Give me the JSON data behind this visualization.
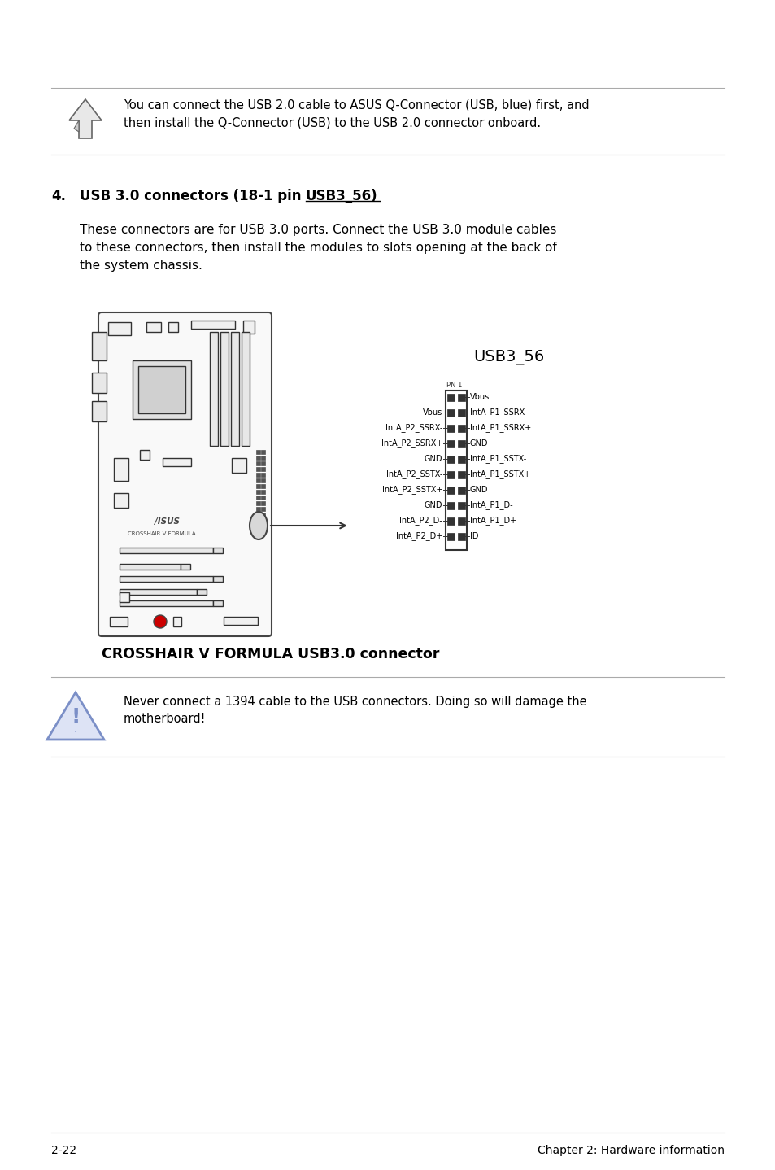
{
  "page_bg": "#ffffff",
  "top_note_text_line1": "You can connect the USB 2.0 cable to ASUS Q-Connector (USB, blue) first, and",
  "top_note_text_line2": "then install the Q-Connector (USB) to the USB 2.0 connector onboard.",
  "section_number": "4.",
  "section_title": "USB 3.0 connectors (18-1 pin USB3_56)",
  "body_line1": "These connectors are for USB 3.0 ports. Connect the USB 3.0 module cables",
  "body_line2": "to these connectors, then install the modules to slots opening at the back of",
  "body_line3": "the system chassis.",
  "diagram_title": "USB3_56",
  "caption": "CROSSHAIR V FORMULA USB3.0 connector",
  "warning_line1": "Never connect a 1394 cable to the USB connectors. Doing so will damage the",
  "warning_line2": "motherboard!",
  "footer_left": "2-22",
  "footer_right": "Chapter 2: Hardware information",
  "pin_left": [
    "",
    "Vbus",
    "IntA_P2_SSRX-",
    "IntA_P2_SSRX+",
    "GND",
    "IntA_P2_SSTX-",
    "IntA_P2_SSTX+",
    "GND",
    "IntA_P2_D-",
    "IntA_P2_D+"
  ],
  "pin_right": [
    "Vbus",
    "IntA_P1_SSRX-",
    "IntA_P1_SSRX+",
    "GND",
    "IntA_P1_SSTX-",
    "IntA_P1_SSTX+",
    "GND",
    "IntA_P1_D-",
    "IntA_P1_D+",
    "ID"
  ],
  "line_color": "#aaaaaa",
  "text_color": "#000000",
  "warn_tri_color": "#7b8fc7",
  "warn_tri_fill": "#dde3f5"
}
